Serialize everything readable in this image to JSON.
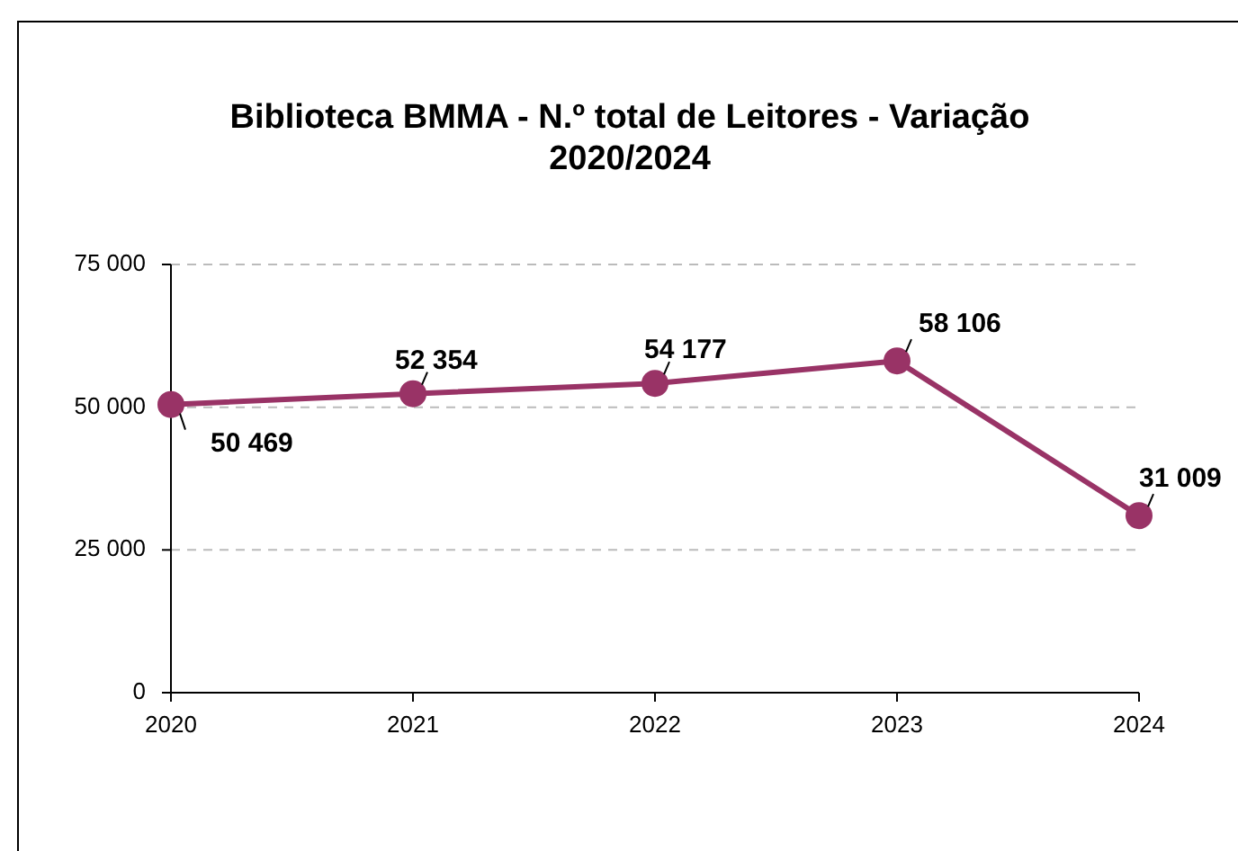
{
  "chart_data": {
    "type": "line",
    "title": "Biblioteca BMMA - N.º total de Leitores - Variação 2020/2024",
    "categories": [
      "2020",
      "2021",
      "2022",
      "2023",
      "2024"
    ],
    "series": [
      {
        "color": "#993366",
        "values": [
          50469,
          52354,
          54177,
          58106,
          31009
        ],
        "value_labels": [
          "50 469",
          "52 354",
          "54 177",
          "58 106",
          "31 009"
        ]
      }
    ],
    "ylim": [
      0,
      75000
    ],
    "yticks": [
      {
        "value": 0,
        "label": "0"
      },
      {
        "value": 25000,
        "label": "25 000"
      },
      {
        "value": 50000,
        "label": "50 000"
      },
      {
        "value": 75000,
        "label": "75 000"
      }
    ],
    "grid": "y",
    "marker": "circle",
    "line_style": "solid"
  }
}
